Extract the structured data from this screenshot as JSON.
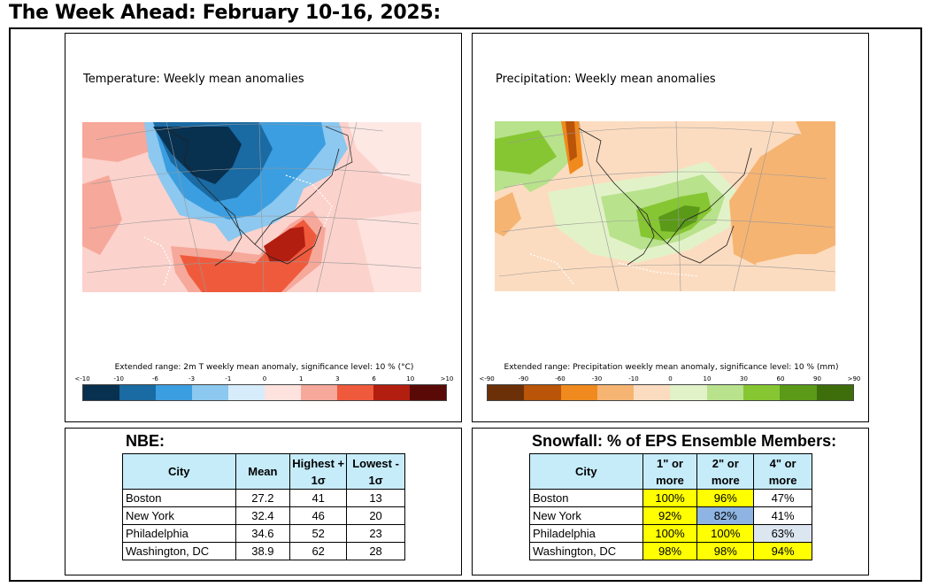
{
  "page_title": "The Week Ahead: February 10-16, 2025:",
  "temperature_panel": {
    "title": "Temperature: Weekly mean anomalies",
    "caption": "Extended range: 2m T weekly mean anomaly, significance level: 10 % (°C)",
    "ticks": [
      "<-10",
      "-10",
      "-6",
      "-3",
      "-1",
      "0",
      "1",
      "3",
      "6",
      "10",
      ">10"
    ],
    "colors": [
      "#08304f",
      "#1a6aa3",
      "#3b9ee0",
      "#8cc8f0",
      "#d6ecfa",
      "#fde2de",
      "#f6a89a",
      "#f05a3c",
      "#b21e10",
      "#5a0a06"
    ]
  },
  "precip_panel": {
    "title": "Precipitation: Weekly mean anomalies",
    "caption": "Extended range: Precipitation weekly mean anomaly, significance level: 10 % (mm)",
    "ticks": [
      "<-90",
      "-90",
      "-60",
      "-30",
      "-10",
      "0",
      "10",
      "30",
      "60",
      "90",
      ">90"
    ],
    "colors": [
      "#6b3008",
      "#b95408",
      "#f08a1e",
      "#f6b472",
      "#fcdcc0",
      "#e2f2c8",
      "#b8e28c",
      "#86c632",
      "#5a9a18",
      "#3e6e0c"
    ]
  },
  "nbe": {
    "heading": "NBE:",
    "headers": {
      "city": "City",
      "mean": "Mean",
      "high_a": "Highest +",
      "high_b": "1σ",
      "low_a": "Lowest -",
      "low_b": "1σ"
    },
    "rows": [
      {
        "city": "Boston",
        "mean": "27.2",
        "high": "41",
        "low": "13"
      },
      {
        "city": "New York",
        "mean": "32.4",
        "high": "46",
        "low": "20"
      },
      {
        "city": "Philadelphia",
        "mean": "34.6",
        "high": "52",
        "low": "23"
      },
      {
        "city": "Washington, DC",
        "mean": "38.9",
        "high": "62",
        "low": "28"
      }
    ]
  },
  "snowfall": {
    "heading": "Snowfall: % of EPS Ensemble Members:",
    "headers": {
      "city": "City",
      "c1a": "1\" or",
      "c1b": "more",
      "c2a": "2\" or",
      "c2b": "more",
      "c3a": "4\" or",
      "c3b": "more"
    },
    "rows": [
      {
        "city": "Boston",
        "v1": "100%",
        "v2": "96%",
        "v3": "47%",
        "bg1": "#ffff00",
        "bg2": "#ffff00",
        "bg3": "#ffffff"
      },
      {
        "city": "New York",
        "v1": "92%",
        "v2": "82%",
        "v3": "41%",
        "bg1": "#ffff00",
        "bg2": "#8db4e2",
        "bg3": "#ffffff"
      },
      {
        "city": "Philadelphia",
        "v1": "100%",
        "v2": "100%",
        "v3": "63%",
        "bg1": "#ffff00",
        "bg2": "#ffff00",
        "bg3": "#dce6f1"
      },
      {
        "city": "Washington, DC",
        "v1": "98%",
        "v2": "98%",
        "v3": "94%",
        "bg1": "#ffff00",
        "bg2": "#ffff00",
        "bg3": "#ffff00"
      }
    ]
  }
}
